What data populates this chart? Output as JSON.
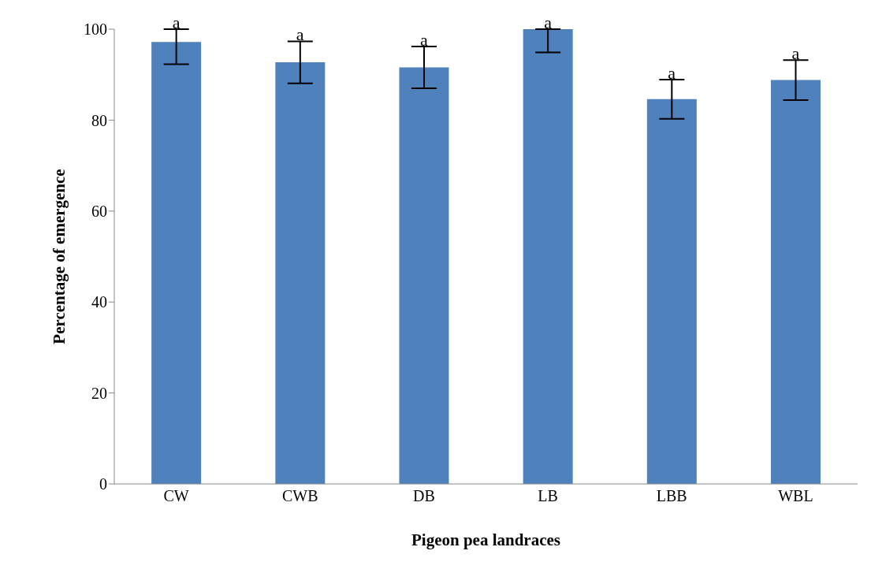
{
  "chart_data": {
    "type": "bar",
    "xlabel": "Pigeon pea landraces",
    "ylabel": "Percentage of emergence",
    "categories": [
      "CW",
      "CWB",
      "DB",
      "LB",
      "LBB",
      "WBL"
    ],
    "values": [
      97.2,
      92.7,
      91.6,
      100,
      84.6,
      88.8
    ],
    "errors": [
      [
        92.3,
        100
      ],
      4.6,
      4.6,
      [
        94.9,
        100
      ],
      4.3,
      4.4
    ],
    "color": "#4f81bd",
    "ylim": [
      0,
      100
    ],
    "yticks": [
      0,
      20,
      40,
      60,
      80,
      100
    ],
    "grid": false,
    "legend": false,
    "annotations": [
      {
        "text": "a",
        "x": "CW",
        "y": 100
      },
      {
        "text": "a",
        "x": "CWB",
        "y": 97.4
      },
      {
        "text": "a",
        "x": "DB",
        "y": 96.2
      },
      {
        "text": "a",
        "x": "LB",
        "y": 100
      },
      {
        "text": "a",
        "x": "LBB",
        "y": 88.9
      },
      {
        "text": "a",
        "x": "WBL",
        "y": 93.2
      }
    ]
  }
}
